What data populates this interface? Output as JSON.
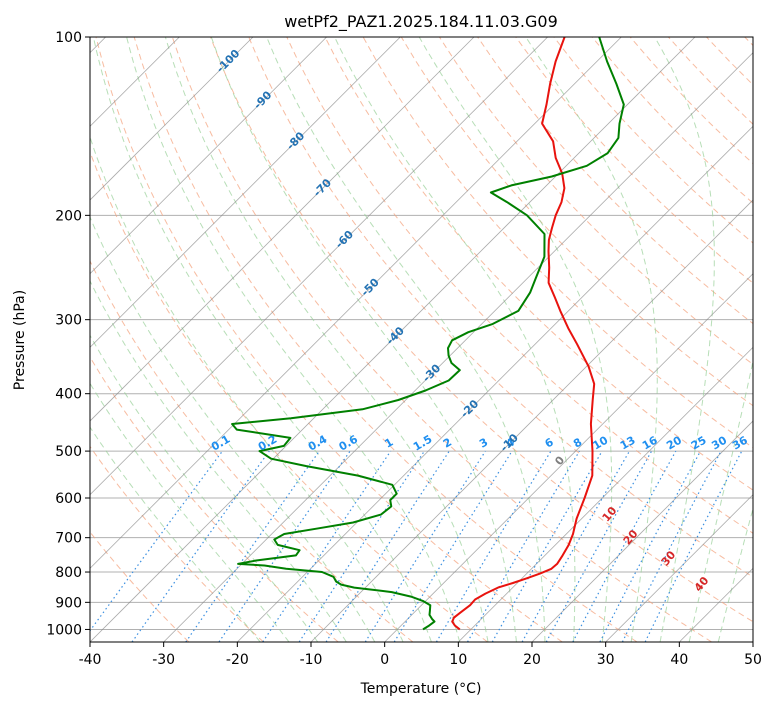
{
  "chart_data": {
    "type": "line",
    "title": "wetPf2_PAZ1.2025.184.11.03.G09",
    "xlabel": "Temperature (°C)",
    "ylabel": "Pressure (hPa)",
    "xlim": [
      -40,
      50
    ],
    "ylim": [
      1050,
      100
    ],
    "yscale": "log",
    "skew": "45deg",
    "x_ticks": [
      -40,
      -30,
      -20,
      -10,
      0,
      10,
      20,
      30,
      40,
      50
    ],
    "y_ticks": [
      100,
      200,
      300,
      400,
      500,
      600,
      700,
      800,
      900,
      1000
    ],
    "grid": true,
    "series": [
      {
        "role": "temperature",
        "color": "#e8130e",
        "points": [
          [
            1000,
            8.5
          ],
          [
            985,
            7.3
          ],
          [
            970,
            6.4
          ],
          [
            955,
            6.1
          ],
          [
            935,
            6.3
          ],
          [
            910,
            6.6
          ],
          [
            890,
            6.5
          ],
          [
            870,
            7.1
          ],
          [
            850,
            8.0
          ],
          [
            835,
            9.4
          ],
          [
            820,
            10.6
          ],
          [
            805,
            11.8
          ],
          [
            790,
            12.7
          ],
          [
            775,
            12.8
          ],
          [
            750,
            12.4
          ],
          [
            720,
            11.8
          ],
          [
            690,
            10.9
          ],
          [
            650,
            9.3
          ],
          [
            600,
            7.6
          ],
          [
            550,
            5.6
          ],
          [
            500,
            2.3
          ],
          [
            450,
            -1.6
          ],
          [
            410,
            -4.6
          ],
          [
            385,
            -6.6
          ],
          [
            360,
            -9.7
          ],
          [
            330,
            -14.3
          ],
          [
            310,
            -17.7
          ],
          [
            290,
            -21.1
          ],
          [
            275,
            -23.7
          ],
          [
            260,
            -26.5
          ],
          [
            245,
            -28.5
          ],
          [
            230,
            -30.8
          ],
          [
            220,
            -32.3
          ],
          [
            210,
            -33.5
          ],
          [
            200,
            -34.7
          ],
          [
            190,
            -35.7
          ],
          [
            180,
            -37.2
          ],
          [
            170,
            -39.5
          ],
          [
            160,
            -42.5
          ],
          [
            150,
            -45.1
          ],
          [
            140,
            -49.0
          ],
          [
            130,
            -51.0
          ],
          [
            120,
            -53.3
          ],
          [
            110,
            -55.6
          ],
          [
            100,
            -57.7
          ]
        ]
      },
      {
        "role": "dewpoint",
        "color": "#008000",
        "points": [
          [
            1000,
            3.5
          ],
          [
            985,
            3.8
          ],
          [
            970,
            4.0
          ],
          [
            960,
            3.3
          ],
          [
            945,
            2.4
          ],
          [
            930,
            1.9
          ],
          [
            910,
            1.2
          ],
          [
            895,
            -0.4
          ],
          [
            880,
            -2.6
          ],
          [
            865,
            -5.8
          ],
          [
            850,
            -11.5
          ],
          [
            840,
            -13.7
          ],
          [
            830,
            -14.8
          ],
          [
            815,
            -15.8
          ],
          [
            800,
            -18.0
          ],
          [
            790,
            -23.3
          ],
          [
            780,
            -26.7
          ],
          [
            775,
            -30.5
          ],
          [
            765,
            -28.5
          ],
          [
            750,
            -23.8
          ],
          [
            735,
            -24.0
          ],
          [
            720,
            -27.7
          ],
          [
            705,
            -28.9
          ],
          [
            690,
            -28.3
          ],
          [
            675,
            -24.4
          ],
          [
            660,
            -20.5
          ],
          [
            640,
            -17.8
          ],
          [
            620,
            -17.5
          ],
          [
            605,
            -18.5
          ],
          [
            590,
            -18.5
          ],
          [
            570,
            -20.3
          ],
          [
            550,
            -26.2
          ],
          [
            530,
            -34.5
          ],
          [
            515,
            -40.3
          ],
          [
            500,
            -42.9
          ],
          [
            490,
            -40.3
          ],
          [
            475,
            -40.5
          ],
          [
            460,
            -48.9
          ],
          [
            450,
            -50.3
          ],
          [
            440,
            -43.1
          ],
          [
            425,
            -34.6
          ],
          [
            410,
            -31.0
          ],
          [
            395,
            -28.6
          ],
          [
            380,
            -26.8
          ],
          [
            365,
            -26.7
          ],
          [
            355,
            -28.8
          ],
          [
            345,
            -30.2
          ],
          [
            335,
            -31.3
          ],
          [
            325,
            -31.8
          ],
          [
            315,
            -30.7
          ],
          [
            305,
            -28.5
          ],
          [
            290,
            -26.8
          ],
          [
            270,
            -27.7
          ],
          [
            255,
            -28.9
          ],
          [
            235,
            -30.6
          ],
          [
            215,
            -33.7
          ],
          [
            200,
            -38.6
          ],
          [
            190,
            -43.1
          ],
          [
            183,
            -46.6
          ],
          [
            178,
            -44.8
          ],
          [
            172,
            -40.5
          ],
          [
            165,
            -37.2
          ],
          [
            157,
            -36.1
          ],
          [
            148,
            -36.7
          ],
          [
            140,
            -38.5
          ],
          [
            130,
            -40.5
          ],
          [
            120,
            -44.3
          ],
          [
            110,
            -48.6
          ],
          [
            100,
            -53.0
          ]
        ]
      }
    ],
    "isohume_labels": [
      "0.1",
      "0.2",
      "0.4",
      "0.6",
      "1",
      "1.5",
      "2",
      "3",
      "4",
      "6",
      "8",
      "10",
      "13",
      "16",
      "20",
      "25",
      "30",
      "36"
    ],
    "mixing_ratio_values": [
      0.1,
      0.2,
      0.4,
      0.6,
      1,
      1.5,
      2,
      3,
      4,
      6,
      8,
      10,
      13,
      16,
      20,
      25,
      30,
      36
    ],
    "isotherm_labels": [
      "-100",
      "-90",
      "-80",
      "-70",
      "-60",
      "-50",
      "-40",
      "-30",
      "-20",
      "-10"
    ],
    "isotherm_values": [
      -100,
      -90,
      -80,
      -70,
      -60,
      -50,
      -40,
      -30,
      -20,
      -10
    ],
    "wetbulb_labels": [
      "0",
      "10",
      "20",
      "30",
      "40"
    ],
    "wetbulb_values": [
      0,
      10,
      20,
      30,
      40
    ],
    "colors": {
      "background": "#ffffff",
      "grid": "#b0b0b0",
      "isotherm": "#888888",
      "dry_adiabat": "#f4a582",
      "moist_adiabat": "#98d098",
      "mixing_ratio": "#3b8fe0",
      "isohume_text": "#1f8ff0",
      "isotherm_text": "#2372b3",
      "wetbulb_zero": "#7f7f7f",
      "wetbulb_text": "#d62728"
    }
  }
}
